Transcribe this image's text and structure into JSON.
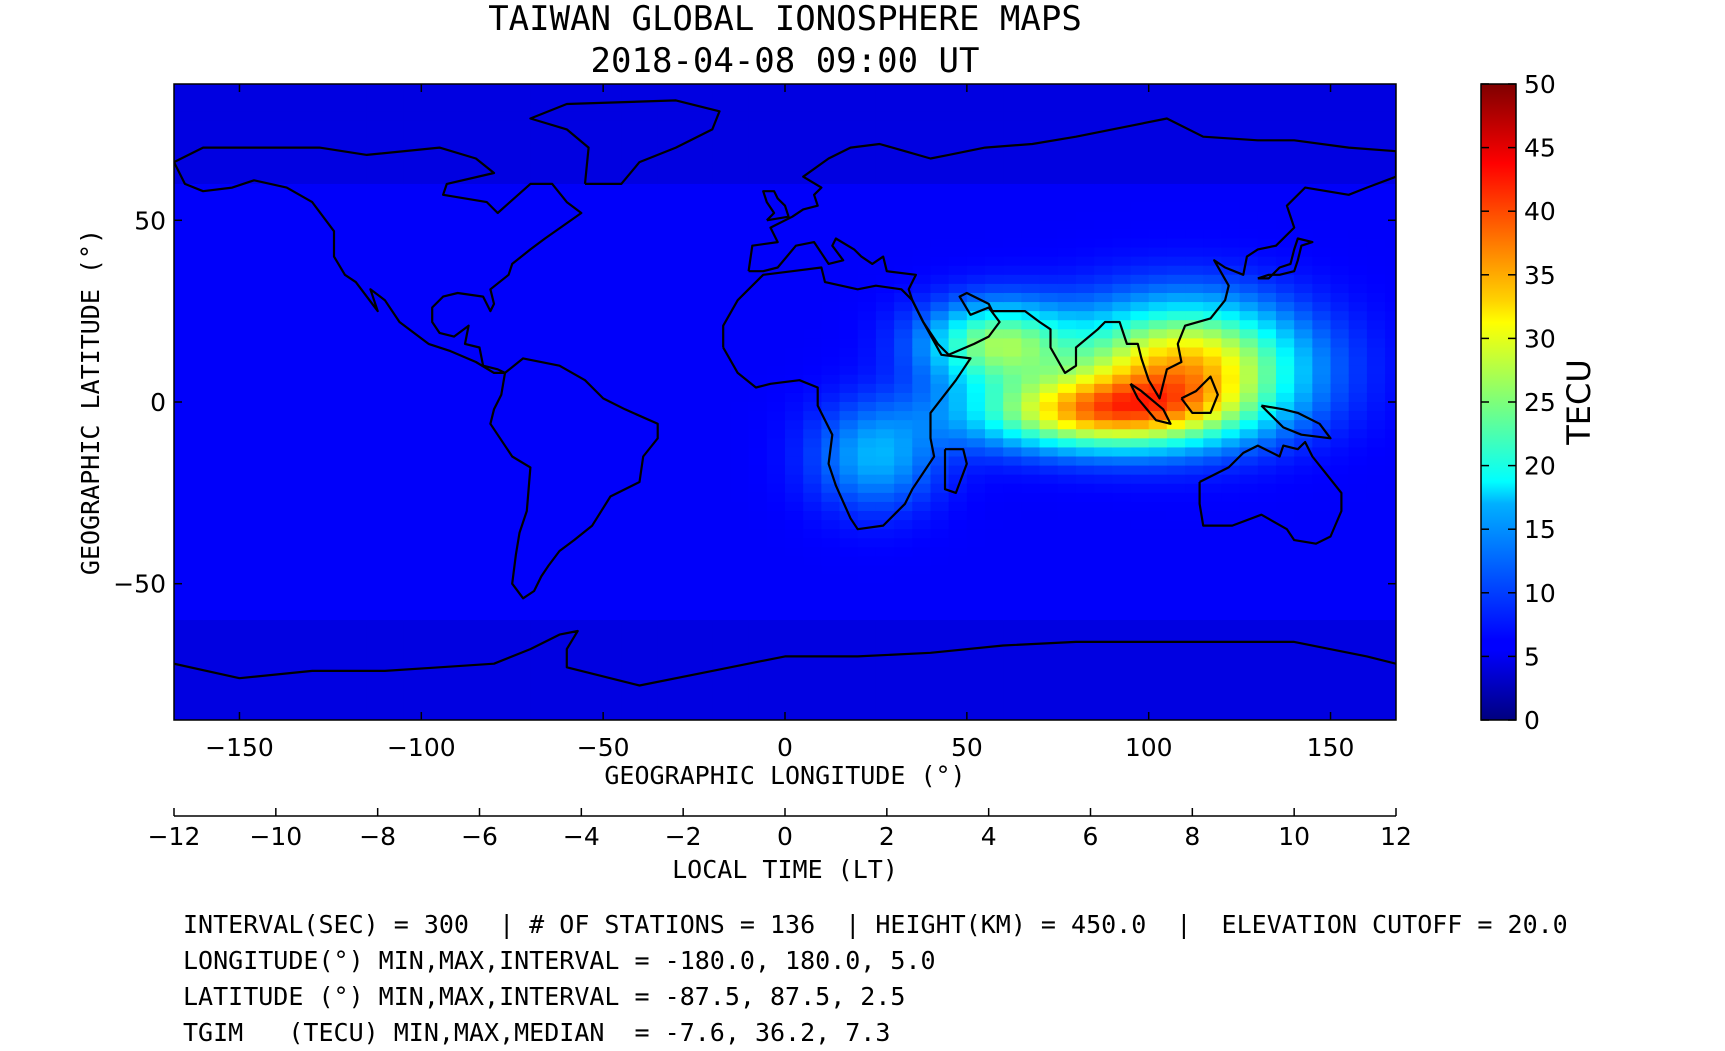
{
  "title": {
    "line1": "TAIWAN GLOBAL IONOSPHERE MAPS",
    "line2": "2018-04-08 09:00 UT"
  },
  "map": {
    "xlabel": "GEOGRAPHIC LONGITUDE (°)",
    "ylabel": "GEOGRAPHIC LATITUDE (°)",
    "xlim": [
      -168,
      168
    ],
    "ylim": [
      -87.5,
      87.5
    ],
    "xticks": [
      -150,
      -100,
      -50,
      0,
      50,
      100,
      150
    ],
    "xtick_labels": [
      "−150",
      "−100",
      "−50",
      "0",
      "50",
      "100",
      "150"
    ],
    "yticks": [
      50,
      0,
      -50
    ],
    "ytick_labels": [
      "50",
      "0",
      "−50"
    ]
  },
  "lt_axis": {
    "xlabel": "LOCAL TIME (LT)",
    "ticks": [
      -12,
      -10,
      -8,
      -6,
      -4,
      -2,
      0,
      2,
      4,
      6,
      8,
      10,
      12
    ],
    "tick_labels": [
      "−12",
      "−10",
      "−8",
      "−6",
      "−4",
      "−2",
      "0",
      "2",
      "4",
      "6",
      "8",
      "10",
      "12"
    ]
  },
  "colorbar": {
    "label": "TECU",
    "min": 0,
    "max": 50,
    "ticks": [
      0,
      5,
      10,
      15,
      20,
      25,
      30,
      35,
      40,
      45,
      50
    ],
    "tick_labels": [
      "0",
      "5",
      "10",
      "15",
      "20",
      "25",
      "30",
      "35",
      "40",
      "45",
      "50"
    ],
    "colormap": "jet"
  },
  "info": {
    "line1": "INTERVAL(SEC) = 300  | # OF STATIONS = 136  | HEIGHT(KM) = 450.0  |  ELEVATION CUTOFF = 20.0",
    "line2": "LONGITUDE(°) MIN,MAX,INTERVAL = -180.0, 180.0, 5.0",
    "line3": "LATITUDE (°) MIN,MAX,INTERVAL = -87.5, 87.5, 2.5",
    "line4": "TGIM   (TECU) MIN,MAX,MEDIAN  = -7.6, 36.2, 7.3"
  },
  "chart_data": {
    "type": "heatmap",
    "x_range": [
      -180,
      180
    ],
    "x_step": 5,
    "y_range": [
      -87.5,
      87.5
    ],
    "y_step": 2.5,
    "z_min": -7.6,
    "z_max": 36.2,
    "z_median": 7.3,
    "field_peaks": [
      {
        "lon": 110,
        "lat": 10,
        "tec": 34,
        "sx": 22,
        "sy": 12
      },
      {
        "lon": 85,
        "lat": -3,
        "tec": 31,
        "sx": 24,
        "sy": 7
      },
      {
        "lon": 58,
        "lat": 16,
        "tec": 25,
        "sx": 14,
        "sy": 8
      },
      {
        "lon": 25,
        "lat": -15,
        "tec": 15,
        "sx": 12,
        "sy": 10
      }
    ],
    "field_background": 6,
    "field_highlat": 3
  }
}
